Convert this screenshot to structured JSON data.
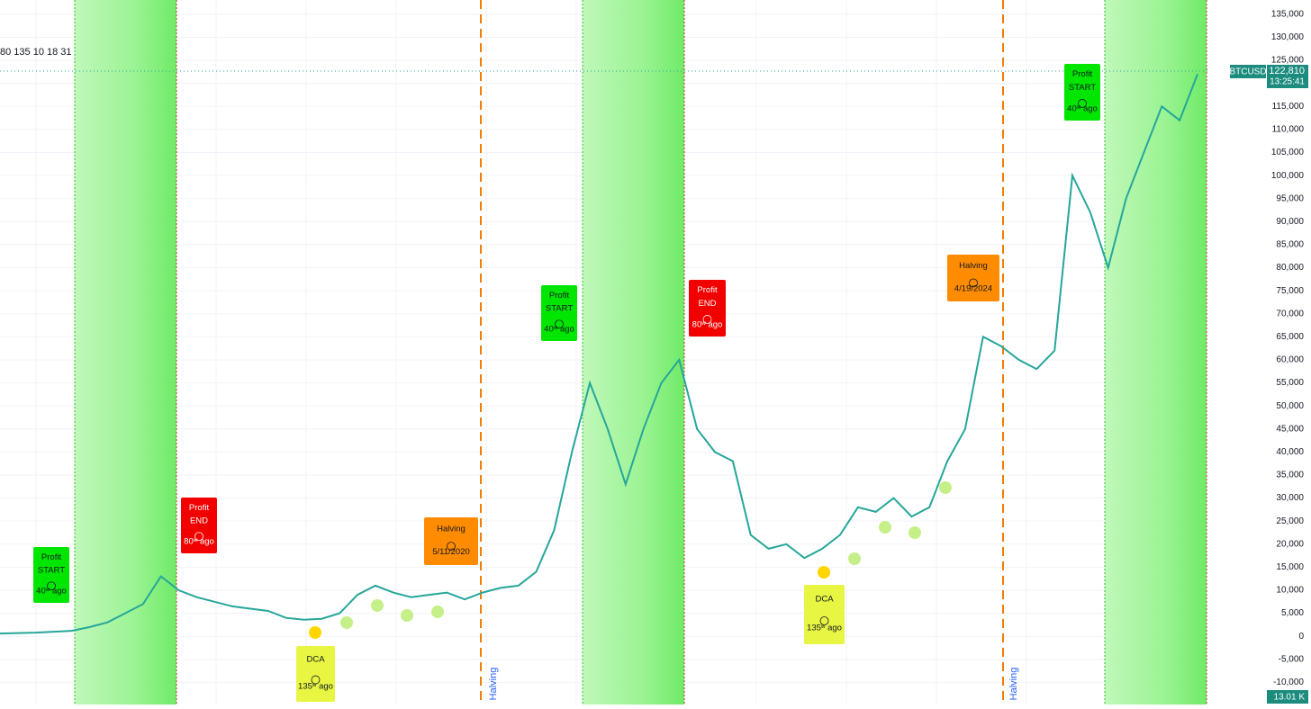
{
  "chart_data": {
    "type": "line",
    "header_text": "80 135 10 18 31",
    "symbol": "BTCUSD",
    "last_price": "122,810",
    "countdown": "13:25:41",
    "volume_label": "13.01 K",
    "series": [
      {
        "name": "BTCUSD",
        "color": "#26a69a",
        "values": [
          600,
          700,
          800,
          1000,
          1200,
          2000,
          3000,
          5000,
          7000,
          13000,
          10000,
          8500,
          7500,
          6500,
          6000,
          5500,
          4000,
          3600,
          3800,
          5000,
          9000,
          11000,
          9500,
          8500,
          9000,
          9500,
          8000,
          9500,
          10500,
          11000,
          14000,
          23000,
          40000,
          55000,
          45000,
          33000,
          45000,
          55000,
          60000,
          45000,
          40000,
          38000,
          22000,
          19000,
          20000,
          17000,
          19000,
          22000,
          28000,
          27000,
          30000,
          26000,
          28000,
          38000,
          45000,
          65000,
          63000,
          60000,
          58000,
          62000,
          100000,
          92000,
          80000,
          95000,
          105000,
          115000,
          112000,
          122000
        ]
      }
    ],
    "ylim": [
      -14800,
      138100
    ],
    "yticks": [
      {
        "value": -10000,
        "label": "-10,000"
      },
      {
        "value": -5000,
        "label": "-5,000"
      },
      0,
      {
        "value": 5000,
        "label": "5,000"
      },
      {
        "value": 10000,
        "label": "10,000"
      },
      {
        "value": 15000,
        "label": "15,000"
      },
      {
        "value": 20000,
        "label": "20,000"
      },
      {
        "value": 25000,
        "label": "25,000"
      },
      {
        "value": 30000,
        "label": "30,000"
      },
      {
        "value": 35000,
        "label": "35,000"
      },
      {
        "value": 40000,
        "label": "40,000"
      },
      {
        "value": 45000,
        "label": "45,000"
      },
      {
        "value": 50000,
        "label": "50,000"
      },
      {
        "value": 55000,
        "label": "55,000"
      },
      {
        "value": 60000,
        "label": "60,000"
      },
      {
        "value": 65000,
        "label": "65,000"
      },
      {
        "value": 70000,
        "label": "70,000"
      },
      {
        "value": 75000,
        "label": "75,000"
      },
      {
        "value": 80000,
        "label": "80,000"
      },
      {
        "value": 85000,
        "label": "85,000"
      },
      {
        "value": 90000,
        "label": "90,000"
      },
      {
        "value": 95000,
        "label": "95,000"
      },
      {
        "value": 100000,
        "label": "100,000"
      },
      {
        "value": 105000,
        "label": "105,000"
      },
      {
        "value": 110000,
        "label": "110,000"
      },
      {
        "value": 115000,
        "label": "115,000"
      },
      {
        "value": 120000,
        "label": "120,000"
      },
      {
        "value": 125000,
        "label": "125,000"
      },
      {
        "value": 130000,
        "label": "130,000"
      },
      {
        "value": 135000,
        "label": "135,000"
      }
    ],
    "grid": true,
    "annotations": [
      {
        "kind": "profit-start",
        "lines": [
          "Profit",
          "START",
          "40ʷ ago"
        ]
      },
      {
        "kind": "profit-end",
        "lines": [
          "Profit",
          "END",
          "80ʷ ago"
        ]
      },
      {
        "kind": "halving",
        "lines": [
          "Halving",
          "5/11/2020"
        ]
      },
      {
        "kind": "dca",
        "lines": [
          "DCA",
          "135ʷ ago"
        ]
      },
      {
        "kind": "profit-start",
        "lines": [
          "Profit",
          "START",
          "40ʷ ago"
        ]
      },
      {
        "kind": "profit-end",
        "lines": [
          "Profit",
          "END",
          "80ʷ ago"
        ]
      },
      {
        "kind": "dca",
        "lines": [
          "DCA",
          "135ʷ ago"
        ]
      },
      {
        "kind": "halving",
        "lines": [
          "Halving",
          "4/19/2024"
        ]
      },
      {
        "kind": "profit-start",
        "lines": [
          "Profit",
          "START",
          "40ʷ ago"
        ]
      }
    ],
    "halving_label": "Halving"
  }
}
